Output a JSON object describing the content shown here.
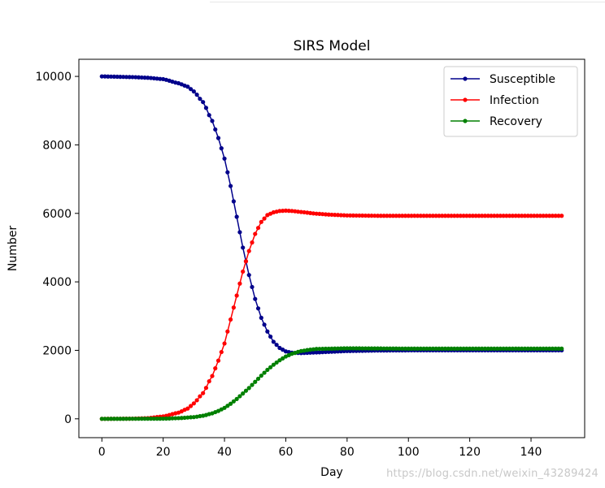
{
  "watermark": "https://blog.csdn.net/weixin_43289424",
  "chart_data": {
    "type": "line",
    "title": "SIRS Model",
    "xlabel": "Day",
    "ylabel": "Number",
    "xlim": [
      -7.5,
      157.5
    ],
    "ylim": [
      -550,
      10500
    ],
    "xticks": [
      0,
      20,
      40,
      60,
      80,
      100,
      120,
      140
    ],
    "yticks": [
      0,
      2000,
      4000,
      6000,
      8000,
      10000
    ],
    "grid": false,
    "legend_position": "top-right",
    "marker": "circle",
    "x": {
      "start": 0,
      "end": 150,
      "step": 1
    },
    "series": [
      {
        "name": "Susceptible",
        "color": "#00008b",
        "keypoints": [
          [
            0,
            10000
          ],
          [
            10,
            9980
          ],
          [
            15,
            9960
          ],
          [
            20,
            9920
          ],
          [
            25,
            9800
          ],
          [
            28,
            9700
          ],
          [
            30,
            9560
          ],
          [
            33,
            9250
          ],
          [
            36,
            8700
          ],
          [
            38,
            8200
          ],
          [
            40,
            7600
          ],
          [
            42,
            6800
          ],
          [
            44,
            5900
          ],
          [
            46,
            5000
          ],
          [
            48,
            4200
          ],
          [
            50,
            3500
          ],
          [
            52,
            2950
          ],
          [
            54,
            2550
          ],
          [
            56,
            2250
          ],
          [
            58,
            2070
          ],
          [
            60,
            1970
          ],
          [
            62,
            1930
          ],
          [
            65,
            1920
          ],
          [
            70,
            1940
          ],
          [
            75,
            1960
          ],
          [
            80,
            1980
          ],
          [
            90,
            1995
          ],
          [
            100,
            2000
          ],
          [
            150,
            2000
          ]
        ]
      },
      {
        "name": "Infection",
        "color": "#ff0000",
        "keypoints": [
          [
            0,
            0
          ],
          [
            10,
            5
          ],
          [
            15,
            20
          ],
          [
            20,
            70
          ],
          [
            25,
            180
          ],
          [
            28,
            300
          ],
          [
            30,
            450
          ],
          [
            33,
            750
          ],
          [
            36,
            1250
          ],
          [
            38,
            1700
          ],
          [
            40,
            2200
          ],
          [
            42,
            2900
          ],
          [
            44,
            3600
          ],
          [
            46,
            4300
          ],
          [
            48,
            4900
          ],
          [
            50,
            5400
          ],
          [
            52,
            5750
          ],
          [
            54,
            5950
          ],
          [
            56,
            6030
          ],
          [
            58,
            6070
          ],
          [
            60,
            6080
          ],
          [
            62,
            6070
          ],
          [
            65,
            6040
          ],
          [
            70,
            5990
          ],
          [
            75,
            5960
          ],
          [
            80,
            5940
          ],
          [
            90,
            5930
          ],
          [
            150,
            5930
          ]
        ]
      },
      {
        "name": "Recovery",
        "color": "#008000",
        "keypoints": [
          [
            0,
            0
          ],
          [
            20,
            5
          ],
          [
            25,
            20
          ],
          [
            30,
            50
          ],
          [
            33,
            90
          ],
          [
            36,
            160
          ],
          [
            38,
            230
          ],
          [
            40,
            320
          ],
          [
            42,
            440
          ],
          [
            44,
            580
          ],
          [
            46,
            740
          ],
          [
            48,
            900
          ],
          [
            50,
            1080
          ],
          [
            52,
            1260
          ],
          [
            54,
            1430
          ],
          [
            56,
            1580
          ],
          [
            58,
            1710
          ],
          [
            60,
            1820
          ],
          [
            62,
            1900
          ],
          [
            65,
            1980
          ],
          [
            68,
            2020
          ],
          [
            70,
            2040
          ],
          [
            75,
            2050
          ],
          [
            80,
            2060
          ],
          [
            90,
            2055
          ],
          [
            100,
            2050
          ],
          [
            150,
            2050
          ]
        ]
      }
    ]
  }
}
